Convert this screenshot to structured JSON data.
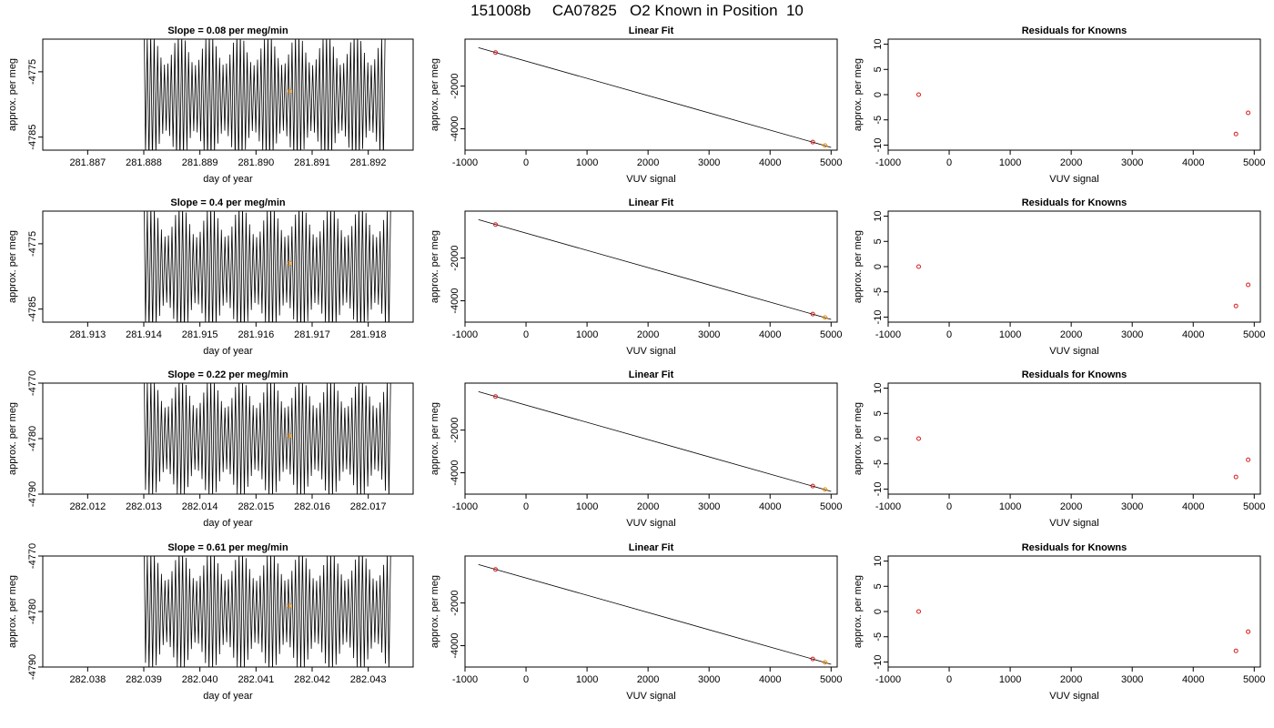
{
  "figure_title": "151008b     CA07825   O2 Known in Position  10",
  "colors": {
    "trace": "#000000",
    "known_point": "#d81b1b",
    "current_point": "#f28e00",
    "axis": "#000000"
  },
  "chart_data": [
    {
      "type": "line",
      "panel": "time-series",
      "row": 1,
      "title": "Slope =  0.08  per meg/min",
      "xlabel": "day of year",
      "ylabel": "approx. per meg",
      "xlim": [
        281.8862,
        281.8928
      ],
      "ylim": [
        -4787,
        -4770
      ],
      "xticks": [
        281.887,
        281.888,
        281.889,
        281.89,
        281.891,
        281.892
      ],
      "xtick_labels": [
        "281.887",
        "281.888",
        "281.889",
        "281.890",
        "281.891",
        "281.892"
      ],
      "yticks": [
        -4775,
        -4785
      ],
      "ytick_labels": [
        "-4775",
        "-4785"
      ],
      "trace": {
        "x_start": 281.888,
        "x_end": 281.8923,
        "cycles": 70,
        "center": -4779,
        "amplitude": 10
      },
      "point": {
        "x": 281.8906,
        "y": -4778
      }
    },
    {
      "type": "line",
      "panel": "linear-fit",
      "row": 1,
      "title": "Linear Fit",
      "xlabel": "VUV signal",
      "ylabel": "approx. per meg",
      "xlim": [
        -1000,
        5100
      ],
      "ylim": [
        -5000,
        200
      ],
      "xticks": [
        -1000,
        0,
        1000,
        2000,
        3000,
        4000,
        5000
      ],
      "xtick_labels": [
        "-1000",
        "0",
        "1000",
        "2000",
        "3000",
        "4000",
        "5000"
      ],
      "yticks": [
        -2000,
        -4000
      ],
      "ytick_labels": [
        "-2000",
        "-4000"
      ],
      "fit_line": {
        "x": [
          -780,
          5000
        ],
        "y": [
          -200,
          -4870
        ]
      },
      "points": [
        {
          "x": -500,
          "y": -430
        },
        {
          "x": 4700,
          "y": -4620
        },
        {
          "x": 4900,
          "y": -4780
        }
      ]
    },
    {
      "type": "scatter",
      "panel": "residuals",
      "row": 1,
      "title": "Residuals for Knowns",
      "xlabel": "VUV signal",
      "ylabel": "approx. per meg",
      "xlim": [
        -1000,
        5100
      ],
      "ylim": [
        -11,
        11
      ],
      "xticks": [
        -1000,
        0,
        1000,
        2000,
        3000,
        4000,
        5000
      ],
      "xtick_labels": [
        "-1000",
        "0",
        "1000",
        "2000",
        "3000",
        "4000",
        "5000"
      ],
      "yticks": [
        10,
        5,
        0,
        -5,
        -10
      ],
      "ytick_labels": [
        "10",
        "5",
        "0",
        "-5",
        "-10"
      ],
      "points": [
        {
          "x": -500,
          "y": 0
        },
        {
          "x": 4700,
          "y": -7.8
        },
        {
          "x": 4900,
          "y": -3.6
        }
      ]
    },
    {
      "type": "line",
      "panel": "time-series",
      "row": 2,
      "title": "Slope =  0.4  per meg/min",
      "xlabel": "day of year",
      "ylabel": "approx. per meg",
      "xlim": [
        281.9122,
        281.9188
      ],
      "ylim": [
        -4787,
        -4770
      ],
      "xticks": [
        281.913,
        281.914,
        281.915,
        281.916,
        281.917,
        281.918
      ],
      "xtick_labels": [
        "281.913",
        "281.914",
        "281.915",
        "281.916",
        "281.917",
        "281.918"
      ],
      "yticks": [
        -4775,
        -4785
      ],
      "ytick_labels": [
        "-4775",
        "-4785"
      ],
      "trace": {
        "x_start": 281.914,
        "x_end": 281.9184,
        "cycles": 70,
        "center": -4779,
        "amplitude": 10
      },
      "point": {
        "x": 281.9166,
        "y": -4778
      }
    },
    {
      "type": "line",
      "panel": "linear-fit",
      "row": 2,
      "title": "Linear Fit",
      "xlabel": "VUV signal",
      "ylabel": "approx. per meg",
      "xlim": [
        -1000,
        5100
      ],
      "ylim": [
        -5000,
        200
      ],
      "xticks": [
        -1000,
        0,
        1000,
        2000,
        3000,
        4000,
        5000
      ],
      "xtick_labels": [
        "-1000",
        "0",
        "1000",
        "2000",
        "3000",
        "4000",
        "5000"
      ],
      "yticks": [
        -2000,
        -4000
      ],
      "ytick_labels": [
        "-2000",
        "-4000"
      ],
      "fit_line": {
        "x": [
          -780,
          5000
        ],
        "y": [
          -200,
          -4870
        ]
      },
      "points": [
        {
          "x": -500,
          "y": -430
        },
        {
          "x": 4700,
          "y": -4620
        },
        {
          "x": 4900,
          "y": -4780
        }
      ]
    },
    {
      "type": "scatter",
      "panel": "residuals",
      "row": 2,
      "title": "Residuals for Knowns",
      "xlabel": "VUV signal",
      "ylabel": "approx. per meg",
      "xlim": [
        -1000,
        5100
      ],
      "ylim": [
        -11,
        11
      ],
      "xticks": [
        -1000,
        0,
        1000,
        2000,
        3000,
        4000,
        5000
      ],
      "xtick_labels": [
        "-1000",
        "0",
        "1000",
        "2000",
        "3000",
        "4000",
        "5000"
      ],
      "yticks": [
        10,
        5,
        0,
        -5,
        -10
      ],
      "ytick_labels": [
        "10",
        "5",
        "0",
        "-5",
        "-10"
      ],
      "points": [
        {
          "x": -500,
          "y": 0
        },
        {
          "x": 4700,
          "y": -7.8
        },
        {
          "x": 4900,
          "y": -3.6
        }
      ]
    },
    {
      "type": "line",
      "panel": "time-series",
      "row": 3,
      "title": "Slope =  0.22  per meg/min",
      "xlabel": "day of year",
      "ylabel": "approx. per meg",
      "xlim": [
        282.0112,
        282.0178
      ],
      "ylim": [
        -4790,
        -4770
      ],
      "xticks": [
        282.012,
        282.013,
        282.014,
        282.015,
        282.016,
        282.017
      ],
      "xtick_labels": [
        "282.012",
        "282.013",
        "282.014",
        "282.015",
        "282.016",
        "282.017"
      ],
      "yticks": [
        -4770,
        -4780,
        -4790
      ],
      "ytick_labels": [
        "-4770",
        "-4780",
        "-4790"
      ],
      "trace": {
        "x_start": 282.013,
        "x_end": 282.0174,
        "cycles": 70,
        "center": -4780,
        "amplitude": 11
      },
      "point": {
        "x": 282.0156,
        "y": -4779.5
      }
    },
    {
      "type": "line",
      "panel": "linear-fit",
      "row": 3,
      "title": "Linear Fit",
      "xlabel": "VUV signal",
      "ylabel": "approx. per meg",
      "xlim": [
        -1000,
        5100
      ],
      "ylim": [
        -5000,
        200
      ],
      "xticks": [
        -1000,
        0,
        1000,
        2000,
        3000,
        4000,
        5000
      ],
      "xtick_labels": [
        "-1000",
        "0",
        "1000",
        "2000",
        "3000",
        "4000",
        "5000"
      ],
      "yticks": [
        -2000,
        -4000
      ],
      "ytick_labels": [
        "-2000",
        "-4000"
      ],
      "fit_line": {
        "x": [
          -780,
          5000
        ],
        "y": [
          -200,
          -4870
        ]
      },
      "points": [
        {
          "x": -500,
          "y": -430
        },
        {
          "x": 4700,
          "y": -4620
        },
        {
          "x": 4900,
          "y": -4780
        }
      ]
    },
    {
      "type": "scatter",
      "panel": "residuals",
      "row": 3,
      "title": "Residuals for Knowns",
      "xlabel": "VUV signal",
      "ylabel": "approx. per meg",
      "xlim": [
        -1000,
        5100
      ],
      "ylim": [
        -11,
        11
      ],
      "xticks": [
        -1000,
        0,
        1000,
        2000,
        3000,
        4000,
        5000
      ],
      "xtick_labels": [
        "-1000",
        "0",
        "1000",
        "2000",
        "3000",
        "4000",
        "5000"
      ],
      "yticks": [
        10,
        5,
        0,
        -5,
        -10
      ],
      "ytick_labels": [
        "10",
        "5",
        "0",
        "-5",
        "-10"
      ],
      "points": [
        {
          "x": -500,
          "y": 0
        },
        {
          "x": 4700,
          "y": -7.6
        },
        {
          "x": 4900,
          "y": -4.2
        }
      ]
    },
    {
      "type": "line",
      "panel": "time-series",
      "row": 4,
      "title": "Slope =  0.61  per meg/min",
      "xlabel": "day of year",
      "ylabel": "approx. per meg",
      "xlim": [
        282.0372,
        282.0438
      ],
      "ylim": [
        -4790,
        -4770
      ],
      "xticks": [
        282.038,
        282.039,
        282.04,
        282.041,
        282.042,
        282.043
      ],
      "xtick_labels": [
        "282.038",
        "282.039",
        "282.040",
        "282.041",
        "282.042",
        "282.043"
      ],
      "yticks": [
        -4770,
        -4780,
        -4790
      ],
      "ytick_labels": [
        "-4770",
        "-4780",
        "-4790"
      ],
      "trace": {
        "x_start": 282.039,
        "x_end": 282.0434,
        "cycles": 70,
        "center": -4780,
        "amplitude": 11
      },
      "point": {
        "x": 282.0416,
        "y": -4779
      }
    },
    {
      "type": "line",
      "panel": "linear-fit",
      "row": 4,
      "title": "Linear Fit",
      "xlabel": "VUV signal",
      "ylabel": "approx. per meg",
      "xlim": [
        -1000,
        5100
      ],
      "ylim": [
        -5000,
        200
      ],
      "xticks": [
        -1000,
        0,
        1000,
        2000,
        3000,
        4000,
        5000
      ],
      "xtick_labels": [
        "-1000",
        "0",
        "1000",
        "2000",
        "3000",
        "4000",
        "5000"
      ],
      "yticks": [
        -2000,
        -4000
      ],
      "ytick_labels": [
        "-2000",
        "-4000"
      ],
      "fit_line": {
        "x": [
          -780,
          5000
        ],
        "y": [
          -200,
          -4870
        ]
      },
      "points": [
        {
          "x": -500,
          "y": -430
        },
        {
          "x": 4700,
          "y": -4620
        },
        {
          "x": 4900,
          "y": -4780
        }
      ]
    },
    {
      "type": "scatter",
      "panel": "residuals",
      "row": 4,
      "title": "Residuals for Knowns",
      "xlabel": "VUV signal",
      "ylabel": "approx. per meg",
      "xlim": [
        -1000,
        5100
      ],
      "ylim": [
        -11,
        11
      ],
      "xticks": [
        -1000,
        0,
        1000,
        2000,
        3000,
        4000,
        5000
      ],
      "xtick_labels": [
        "-1000",
        "0",
        "1000",
        "2000",
        "3000",
        "4000",
        "5000"
      ],
      "yticks": [
        10,
        5,
        0,
        -5,
        -10
      ],
      "ytick_labels": [
        "10",
        "5",
        "0",
        "-5",
        "-10"
      ],
      "points": [
        {
          "x": -500,
          "y": 0
        },
        {
          "x": 4700,
          "y": -7.8
        },
        {
          "x": 4900,
          "y": -4.0
        }
      ]
    }
  ]
}
